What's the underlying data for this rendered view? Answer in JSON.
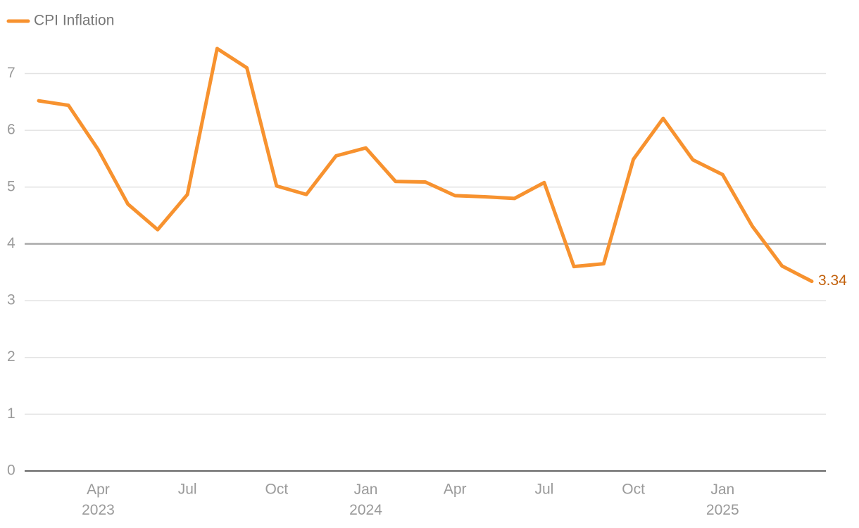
{
  "chart_data": {
    "type": "line",
    "x": [
      "2023-02",
      "2023-03",
      "2023-04",
      "2023-05",
      "2023-06",
      "2023-07",
      "2023-08",
      "2023-09",
      "2023-10",
      "2023-11",
      "2023-12",
      "2024-01",
      "2024-02",
      "2024-03",
      "2024-04",
      "2024-05",
      "2024-06",
      "2024-07",
      "2024-08",
      "2024-09",
      "2024-10",
      "2024-11",
      "2024-12",
      "2025-01",
      "2025-02",
      "2025-03",
      "2025-04"
    ],
    "series": [
      {
        "name": "CPI Inflation",
        "color": "#f7922f",
        "values": [
          6.52,
          6.44,
          5.66,
          4.7,
          4.25,
          4.87,
          7.44,
          7.1,
          5.02,
          4.87,
          5.55,
          5.69,
          5.1,
          5.09,
          4.85,
          4.83,
          4.8,
          5.08,
          3.6,
          3.65,
          5.49,
          6.21,
          5.48,
          5.22,
          4.31,
          3.61,
          3.34
        ]
      }
    ],
    "ylim": [
      0,
      7.7
    ],
    "yticks": [
      0,
      1,
      2,
      3,
      4,
      5,
      6,
      7
    ],
    "xticks": [
      {
        "value": "2023-04",
        "label": "Apr 2023"
      },
      {
        "value": "2023-07",
        "label": "Jul"
      },
      {
        "value": "2023-10",
        "label": "Oct"
      },
      {
        "value": "2024-01",
        "label": "Jan 2024"
      },
      {
        "value": "2024-04",
        "label": "Apr"
      },
      {
        "value": "2024-07",
        "label": "Jul"
      },
      {
        "value": "2024-10",
        "label": "Oct"
      },
      {
        "value": "2025-01",
        "label": "Jan 2025"
      }
    ],
    "reference_line": 4,
    "grid": true,
    "legend": "top-left"
  }
}
